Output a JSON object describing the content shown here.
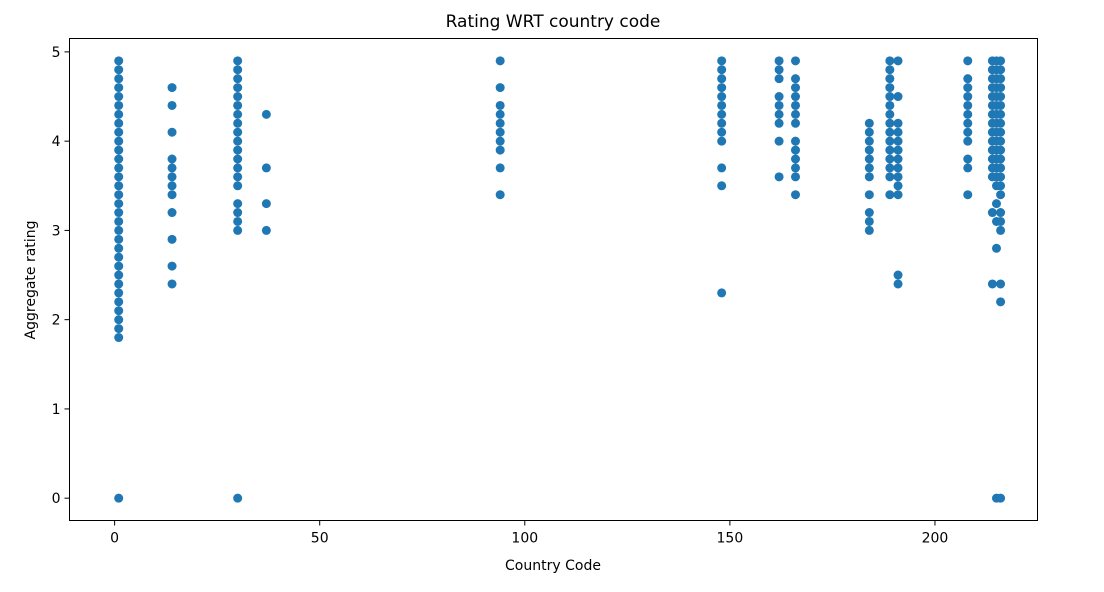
{
  "chart_data": {
    "type": "scatter",
    "title": "Rating WRT country code",
    "xlabel": "Country Code",
    "ylabel": "Aggregate rating",
    "xlim": [
      -11,
      225
    ],
    "ylim": [
      -0.25,
      5.15
    ],
    "xticks": [
      0,
      50,
      100,
      150,
      200
    ],
    "yticks": [
      0,
      1,
      2,
      3,
      4,
      5
    ],
    "grid": false,
    "color": "#1f77b4",
    "series": [
      {
        "points": [
          [
            1,
            0.0
          ],
          [
            1,
            1.8
          ],
          [
            1,
            1.9
          ],
          [
            1,
            2.0
          ],
          [
            1,
            2.1
          ],
          [
            1,
            2.2
          ],
          [
            1,
            2.3
          ],
          [
            1,
            2.4
          ],
          [
            1,
            2.5
          ],
          [
            1,
            2.6
          ],
          [
            1,
            2.7
          ],
          [
            1,
            2.8
          ],
          [
            1,
            2.9
          ],
          [
            1,
            3.0
          ],
          [
            1,
            3.1
          ],
          [
            1,
            3.2
          ],
          [
            1,
            3.3
          ],
          [
            1,
            3.4
          ],
          [
            1,
            3.5
          ],
          [
            1,
            3.6
          ],
          [
            1,
            3.7
          ],
          [
            1,
            3.8
          ],
          [
            1,
            3.9
          ],
          [
            1,
            4.0
          ],
          [
            1,
            4.1
          ],
          [
            1,
            4.2
          ],
          [
            1,
            4.3
          ],
          [
            1,
            4.4
          ],
          [
            1,
            4.5
          ],
          [
            1,
            4.6
          ],
          [
            1,
            4.7
          ],
          [
            1,
            4.8
          ],
          [
            1,
            4.9
          ],
          [
            14,
            2.4
          ],
          [
            14,
            2.6
          ],
          [
            14,
            2.9
          ],
          [
            14,
            3.2
          ],
          [
            14,
            3.4
          ],
          [
            14,
            3.5
          ],
          [
            14,
            3.6
          ],
          [
            14,
            3.7
          ],
          [
            14,
            3.8
          ],
          [
            14,
            4.1
          ],
          [
            14,
            4.4
          ],
          [
            14,
            4.6
          ],
          [
            30,
            0.0
          ],
          [
            30,
            3.0
          ],
          [
            30,
            3.1
          ],
          [
            30,
            3.2
          ],
          [
            30,
            3.3
          ],
          [
            30,
            3.5
          ],
          [
            30,
            3.6
          ],
          [
            30,
            3.7
          ],
          [
            30,
            3.8
          ],
          [
            30,
            3.9
          ],
          [
            30,
            4.0
          ],
          [
            30,
            4.1
          ],
          [
            30,
            4.2
          ],
          [
            30,
            4.3
          ],
          [
            30,
            4.4
          ],
          [
            30,
            4.5
          ],
          [
            30,
            4.6
          ],
          [
            30,
            4.7
          ],
          [
            30,
            4.8
          ],
          [
            30,
            4.9
          ],
          [
            37,
            3.0
          ],
          [
            37,
            3.3
          ],
          [
            37,
            3.7
          ],
          [
            37,
            4.3
          ],
          [
            94,
            3.4
          ],
          [
            94,
            3.7
          ],
          [
            94,
            3.9
          ],
          [
            94,
            4.0
          ],
          [
            94,
            4.1
          ],
          [
            94,
            4.2
          ],
          [
            94,
            4.3
          ],
          [
            94,
            4.4
          ],
          [
            94,
            4.6
          ],
          [
            94,
            4.9
          ],
          [
            148,
            2.3
          ],
          [
            148,
            3.5
          ],
          [
            148,
            3.7
          ],
          [
            148,
            4.0
          ],
          [
            148,
            4.1
          ],
          [
            148,
            4.2
          ],
          [
            148,
            4.3
          ],
          [
            148,
            4.4
          ],
          [
            148,
            4.5
          ],
          [
            148,
            4.6
          ],
          [
            148,
            4.7
          ],
          [
            148,
            4.8
          ],
          [
            148,
            4.9
          ],
          [
            162,
            3.6
          ],
          [
            162,
            4.0
          ],
          [
            162,
            4.2
          ],
          [
            162,
            4.3
          ],
          [
            162,
            4.4
          ],
          [
            162,
            4.5
          ],
          [
            162,
            4.7
          ],
          [
            162,
            4.8
          ],
          [
            162,
            4.9
          ],
          [
            166,
            3.4
          ],
          [
            166,
            3.6
          ],
          [
            166,
            3.7
          ],
          [
            166,
            3.8
          ],
          [
            166,
            3.9
          ],
          [
            166,
            4.0
          ],
          [
            166,
            4.2
          ],
          [
            166,
            4.3
          ],
          [
            166,
            4.4
          ],
          [
            166,
            4.5
          ],
          [
            166,
            4.6
          ],
          [
            166,
            4.7
          ],
          [
            166,
            4.9
          ],
          [
            184,
            3.0
          ],
          [
            184,
            3.1
          ],
          [
            184,
            3.2
          ],
          [
            184,
            3.4
          ],
          [
            184,
            3.6
          ],
          [
            184,
            3.7
          ],
          [
            184,
            3.8
          ],
          [
            184,
            3.9
          ],
          [
            184,
            4.0
          ],
          [
            184,
            4.1
          ],
          [
            184,
            4.2
          ],
          [
            189,
            3.4
          ],
          [
            189,
            3.6
          ],
          [
            189,
            3.7
          ],
          [
            189,
            3.8
          ],
          [
            189,
            3.9
          ],
          [
            189,
            4.0
          ],
          [
            189,
            4.1
          ],
          [
            189,
            4.2
          ],
          [
            189,
            4.3
          ],
          [
            189,
            4.4
          ],
          [
            189,
            4.5
          ],
          [
            189,
            4.6
          ],
          [
            189,
            4.7
          ],
          [
            189,
            4.8
          ],
          [
            189,
            4.9
          ],
          [
            191,
            2.4
          ],
          [
            191,
            2.5
          ],
          [
            191,
            3.4
          ],
          [
            191,
            3.5
          ],
          [
            191,
            3.6
          ],
          [
            191,
            3.7
          ],
          [
            191,
            3.8
          ],
          [
            191,
            3.9
          ],
          [
            191,
            4.0
          ],
          [
            191,
            4.1
          ],
          [
            191,
            4.2
          ],
          [
            191,
            4.5
          ],
          [
            191,
            4.9
          ],
          [
            208,
            3.4
          ],
          [
            208,
            3.7
          ],
          [
            208,
            3.8
          ],
          [
            208,
            4.0
          ],
          [
            208,
            4.1
          ],
          [
            208,
            4.2
          ],
          [
            208,
            4.3
          ],
          [
            208,
            4.4
          ],
          [
            208,
            4.5
          ],
          [
            208,
            4.6
          ],
          [
            208,
            4.7
          ],
          [
            208,
            4.9
          ],
          [
            214,
            2.4
          ],
          [
            214,
            3.2
          ],
          [
            214,
            3.6
          ],
          [
            214,
            3.7
          ],
          [
            214,
            3.8
          ],
          [
            214,
            3.9
          ],
          [
            214,
            4.0
          ],
          [
            214,
            4.1
          ],
          [
            214,
            4.2
          ],
          [
            214,
            4.3
          ],
          [
            214,
            4.4
          ],
          [
            214,
            4.5
          ],
          [
            214,
            4.6
          ],
          [
            214,
            4.7
          ],
          [
            214,
            4.8
          ],
          [
            214,
            4.9
          ],
          [
            215,
            0.0
          ],
          [
            215,
            2.8
          ],
          [
            215,
            3.1
          ],
          [
            215,
            3.3
          ],
          [
            215,
            3.5
          ],
          [
            215,
            3.6
          ],
          [
            215,
            3.7
          ],
          [
            215,
            3.8
          ],
          [
            215,
            3.9
          ],
          [
            215,
            4.0
          ],
          [
            215,
            4.1
          ],
          [
            215,
            4.2
          ],
          [
            215,
            4.3
          ],
          [
            215,
            4.4
          ],
          [
            215,
            4.5
          ],
          [
            215,
            4.6
          ],
          [
            215,
            4.7
          ],
          [
            215,
            4.8
          ],
          [
            215,
            4.9
          ],
          [
            216,
            0.0
          ],
          [
            216,
            2.2
          ],
          [
            216,
            2.4
          ],
          [
            216,
            3.0
          ],
          [
            216,
            3.1
          ],
          [
            216,
            3.2
          ],
          [
            216,
            3.4
          ],
          [
            216,
            3.5
          ],
          [
            216,
            3.6
          ],
          [
            216,
            3.7
          ],
          [
            216,
            3.8
          ],
          [
            216,
            3.9
          ],
          [
            216,
            4.0
          ],
          [
            216,
            4.1
          ],
          [
            216,
            4.2
          ],
          [
            216,
            4.3
          ],
          [
            216,
            4.4
          ],
          [
            216,
            4.5
          ],
          [
            216,
            4.6
          ],
          [
            216,
            4.7
          ],
          [
            216,
            4.8
          ],
          [
            216,
            4.9
          ]
        ]
      }
    ]
  }
}
